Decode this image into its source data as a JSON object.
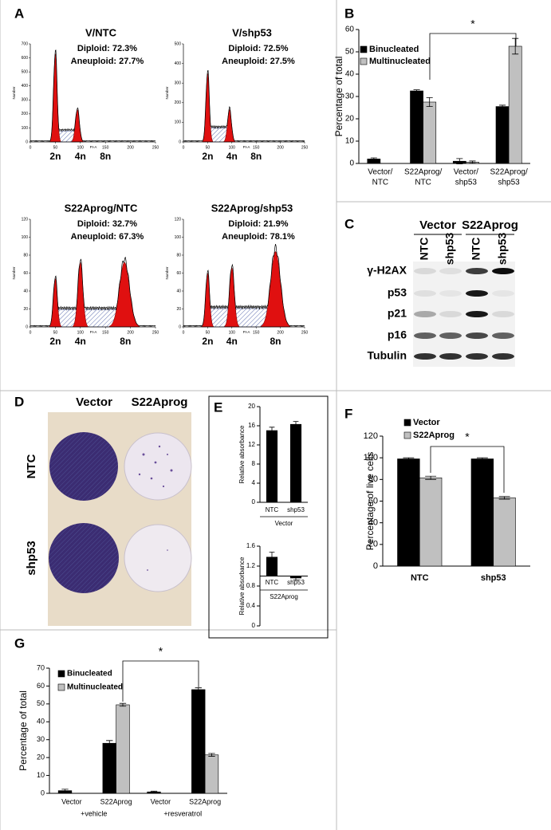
{
  "panels": {
    "A": {
      "label": "A",
      "plots": [
        {
          "title": "V/NTC",
          "diploid": "Diploid: 72.3%",
          "aneuploid": "Aneuploid: 27.7%",
          "xlabel": "PI-A",
          "ylabel": "Number",
          "xlim": [
            0,
            250
          ],
          "xticks": [
            0,
            50,
            100,
            150,
            200,
            250
          ],
          "ylim": [
            0,
            700
          ],
          "yticks": [
            0,
            100,
            200,
            300,
            400,
            500,
            600,
            700
          ],
          "peaks": [
            "2n",
            "4n",
            "8n"
          ]
        },
        {
          "title": "V/shp53",
          "diploid": "Diploid: 72.5%",
          "aneuploid": "Aneuploid: 27.5%",
          "xlabel": "PI-A",
          "ylabel": "Number",
          "xlim": [
            0,
            250
          ],
          "xticks": [
            0,
            50,
            100,
            150,
            200,
            250
          ],
          "ylim": [
            0,
            500
          ],
          "yticks": [
            0,
            100,
            200,
            300,
            400,
            500
          ],
          "peaks": [
            "2n",
            "4n",
            "8n"
          ]
        },
        {
          "title": "S22Aprog/NTC",
          "diploid": "Diploid: 32.7%",
          "aneuploid": "Aneuploid: 67.3%",
          "xlabel": "PI-A",
          "ylabel": "Number",
          "xlim": [
            0,
            250
          ],
          "xticks": [
            0,
            50,
            100,
            150,
            200,
            250
          ],
          "ylim": [
            0,
            120
          ],
          "yticks": [
            0,
            20,
            40,
            60,
            80,
            100,
            120
          ],
          "peaks": [
            "2n",
            "4n",
            "8n"
          ]
        },
        {
          "title": "S22Aprog/shp53",
          "diploid": "Diploid: 21.9%",
          "aneuploid": "Aneuploid: 78.1%",
          "xlabel": "PI-A",
          "ylabel": "Number",
          "xlim": [
            0,
            250
          ],
          "xticks": [
            0,
            50,
            100,
            150,
            200,
            250
          ],
          "ylim": [
            0,
            120
          ],
          "yticks": [
            0,
            20,
            40,
            60,
            80,
            100,
            120
          ],
          "peaks": [
            "2n",
            "4n",
            "8n"
          ]
        }
      ]
    },
    "B": {
      "label": "B",
      "type": "bar",
      "ylabel": "Percentage of total",
      "categories": [
        [
          "Vector/",
          "NTC"
        ],
        [
          "S22Aprog/",
          "NTC"
        ],
        [
          "Vector/",
          "shp53"
        ],
        [
          "S22Aprog/",
          "shp53"
        ]
      ],
      "series": [
        {
          "name": "Binucleated",
          "color": "#000000",
          "values": [
            2,
            32.5,
            1,
            25.5
          ],
          "errors": [
            0.5,
            0.5,
            1.2,
            0.6
          ]
        },
        {
          "name": "Multinucleated",
          "color": "#c0c0c0",
          "values": [
            0,
            27.5,
            0.6,
            52.5
          ],
          "errors": [
            0,
            2,
            0.5,
            3.5
          ]
        }
      ],
      "ylim": [
        0,
        60
      ],
      "yticks": [
        0,
        10,
        20,
        30,
        40,
        50,
        60
      ],
      "significance": "*"
    },
    "C": {
      "label": "C",
      "groups": [
        "Vector",
        "S22Aprog"
      ],
      "lanes": [
        "NTC",
        "shp53",
        "NTC",
        "shp53"
      ],
      "rows": [
        "γ-H2AX",
        "p53",
        "p21",
        "p16",
        "Tubulin"
      ]
    },
    "D": {
      "label": "D",
      "columns": [
        "Vector",
        "S22Aprog"
      ],
      "rows": [
        "NTC",
        "shp53"
      ]
    },
    "E": {
      "label": "E",
      "charts": [
        {
          "type": "bar",
          "ylabel": "Relative absorbance",
          "categories": [
            "NTC",
            "shp53"
          ],
          "groups": [
            "Vector"
          ],
          "series": [
            {
              "color": "#000000",
              "values": [
                15,
                16.3
              ],
              "errors": [
                0.7,
                0.6
              ]
            }
          ],
          "ylim": [
            0,
            20
          ],
          "yticks": [
            0,
            4,
            8,
            12,
            16,
            20
          ]
        },
        {
          "type": "bar",
          "ylabel": "Relative absorbance",
          "categories": [
            "NTC",
            "shp53"
          ],
          "groups": [
            "S22Aprog"
          ],
          "series": [
            {
              "color": "#000000",
              "values": [
                1.38,
                0.96
              ],
              "errors": [
                0.1,
                0.04
              ]
            }
          ],
          "ylim": [
            0,
            1.6
          ],
          "baseline": 1,
          "yticks": [
            0,
            0.4,
            0.8,
            1.2,
            1.6
          ]
        }
      ]
    },
    "F": {
      "label": "F",
      "type": "bar",
      "ylabel": "Percentage of live cells",
      "categories": [
        "NTC",
        "shp53"
      ],
      "series": [
        {
          "name": "Vector",
          "color": "#000000",
          "values": [
            99,
            99
          ],
          "errors": [
            1,
            1
          ]
        },
        {
          "name": "S22Aprog",
          "color": "#c0c0c0",
          "values": [
            81.5,
            63
          ],
          "errors": [
            1.5,
            1.2
          ]
        }
      ],
      "ylim": [
        0,
        120
      ],
      "yticks": [
        0,
        20,
        40,
        60,
        80,
        100,
        120
      ],
      "significance": "*"
    },
    "G": {
      "label": "G",
      "type": "bar",
      "ylabel": "Percentage of total",
      "categories": [
        "Vector",
        "S22Aprog",
        "Vector",
        "S22Aprog"
      ],
      "groups": [
        "+vehicle",
        "+resveratrol"
      ],
      "series": [
        {
          "name": "Binucleated",
          "color": "#000000",
          "values": [
            1.5,
            28,
            0.8,
            58
          ],
          "errors": [
            0.8,
            1.5,
            0.4,
            1
          ]
        },
        {
          "name": "Multinucleated",
          "color": "#c0c0c0",
          "values": [
            0,
            49.5,
            0,
            21.5
          ],
          "errors": [
            0,
            0.8,
            0,
            0.8
          ]
        }
      ],
      "ylim": [
        0,
        70
      ],
      "yticks": [
        0,
        10,
        20,
        30,
        40,
        50,
        60,
        70
      ],
      "significance": "*"
    }
  }
}
